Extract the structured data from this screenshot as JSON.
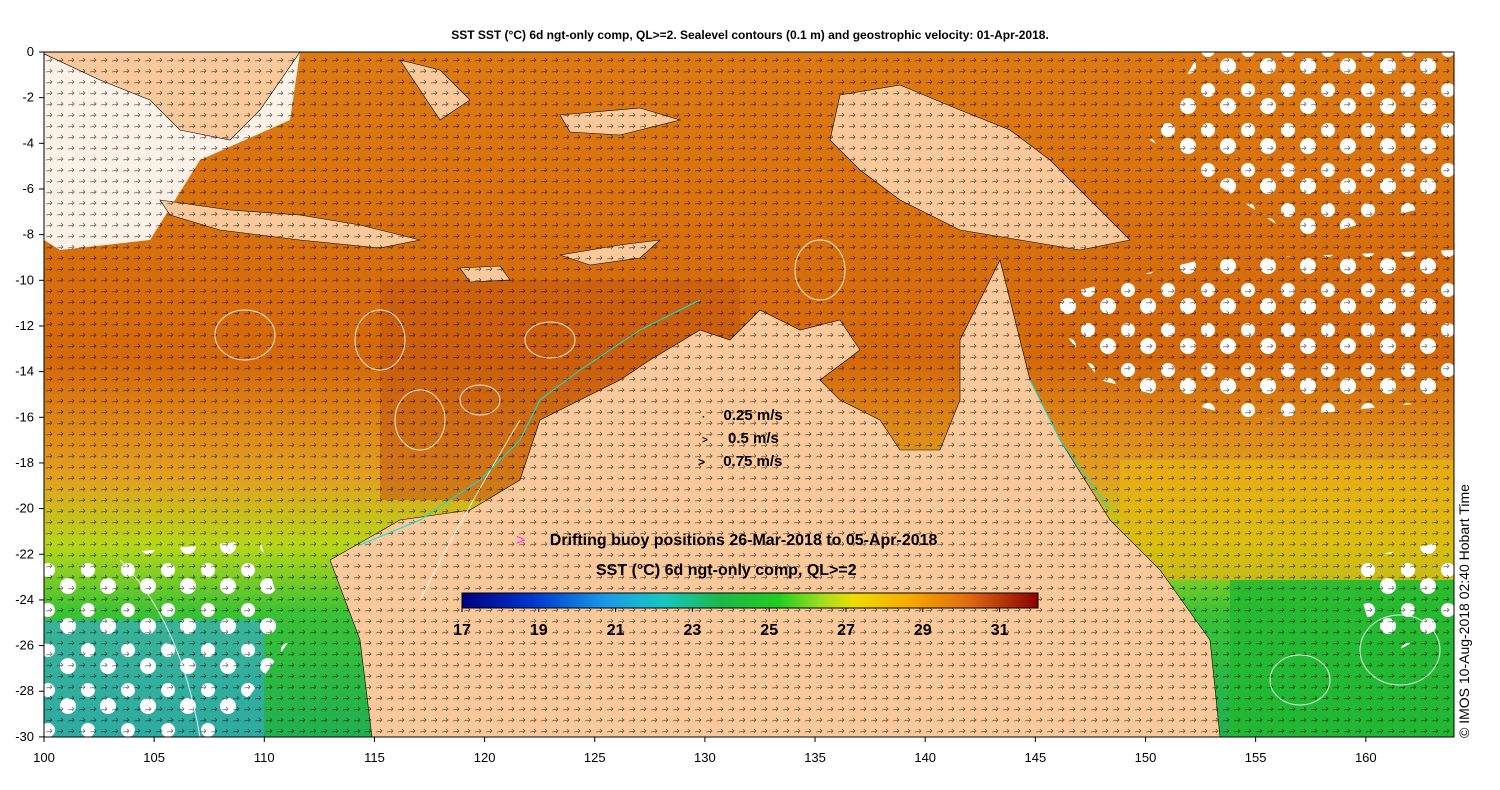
{
  "title": "SST SST (°C) 6d ngt-only comp, QL>=2. Sealevel contours (0.1 m) and geostrophic velocity: 01-Apr-2018.",
  "axes": {
    "x_ticks": [
      "100",
      "105",
      "110",
      "115",
      "120",
      "125",
      "130",
      "135",
      "140",
      "145",
      "150",
      "155",
      "160"
    ],
    "y_ticks": [
      "0",
      "-2",
      "-4",
      "-6",
      "-8",
      "-10",
      "-12",
      "-14",
      "-16",
      "-18",
      "-20",
      "-22",
      "-24",
      "-26",
      "-28",
      "-30"
    ]
  },
  "velocity_legend": [
    {
      "label": "0.25 m/s",
      "glyph": "·"
    },
    {
      "label": "0.5 m/s",
      "glyph": ">"
    },
    {
      "label": "0.75 m/s",
      "glyph": ">"
    }
  ],
  "buoy_legend": {
    "glyph": ">",
    "label": "Drifting buoy positions 26-Mar-2018 to 05-Apr-2018",
    "color": "#ff33ff"
  },
  "colorbar": {
    "title": "SST (°C) 6d ngt-only comp, QL>=2",
    "ticks": [
      "17",
      "19",
      "21",
      "23",
      "25",
      "27",
      "29",
      "31"
    ],
    "range": [
      17,
      32
    ]
  },
  "timestamp": "© IMOS 10-Aug-2018 02:40 Hobart Time",
  "colors": {
    "land": "#f9c89b",
    "warm": "#e07a10",
    "hot": "#b84a0a",
    "cool": "#22bb33",
    "cold": "#1aa0e0",
    "contour": "#ffffff",
    "coast": "#00e5e5"
  }
}
